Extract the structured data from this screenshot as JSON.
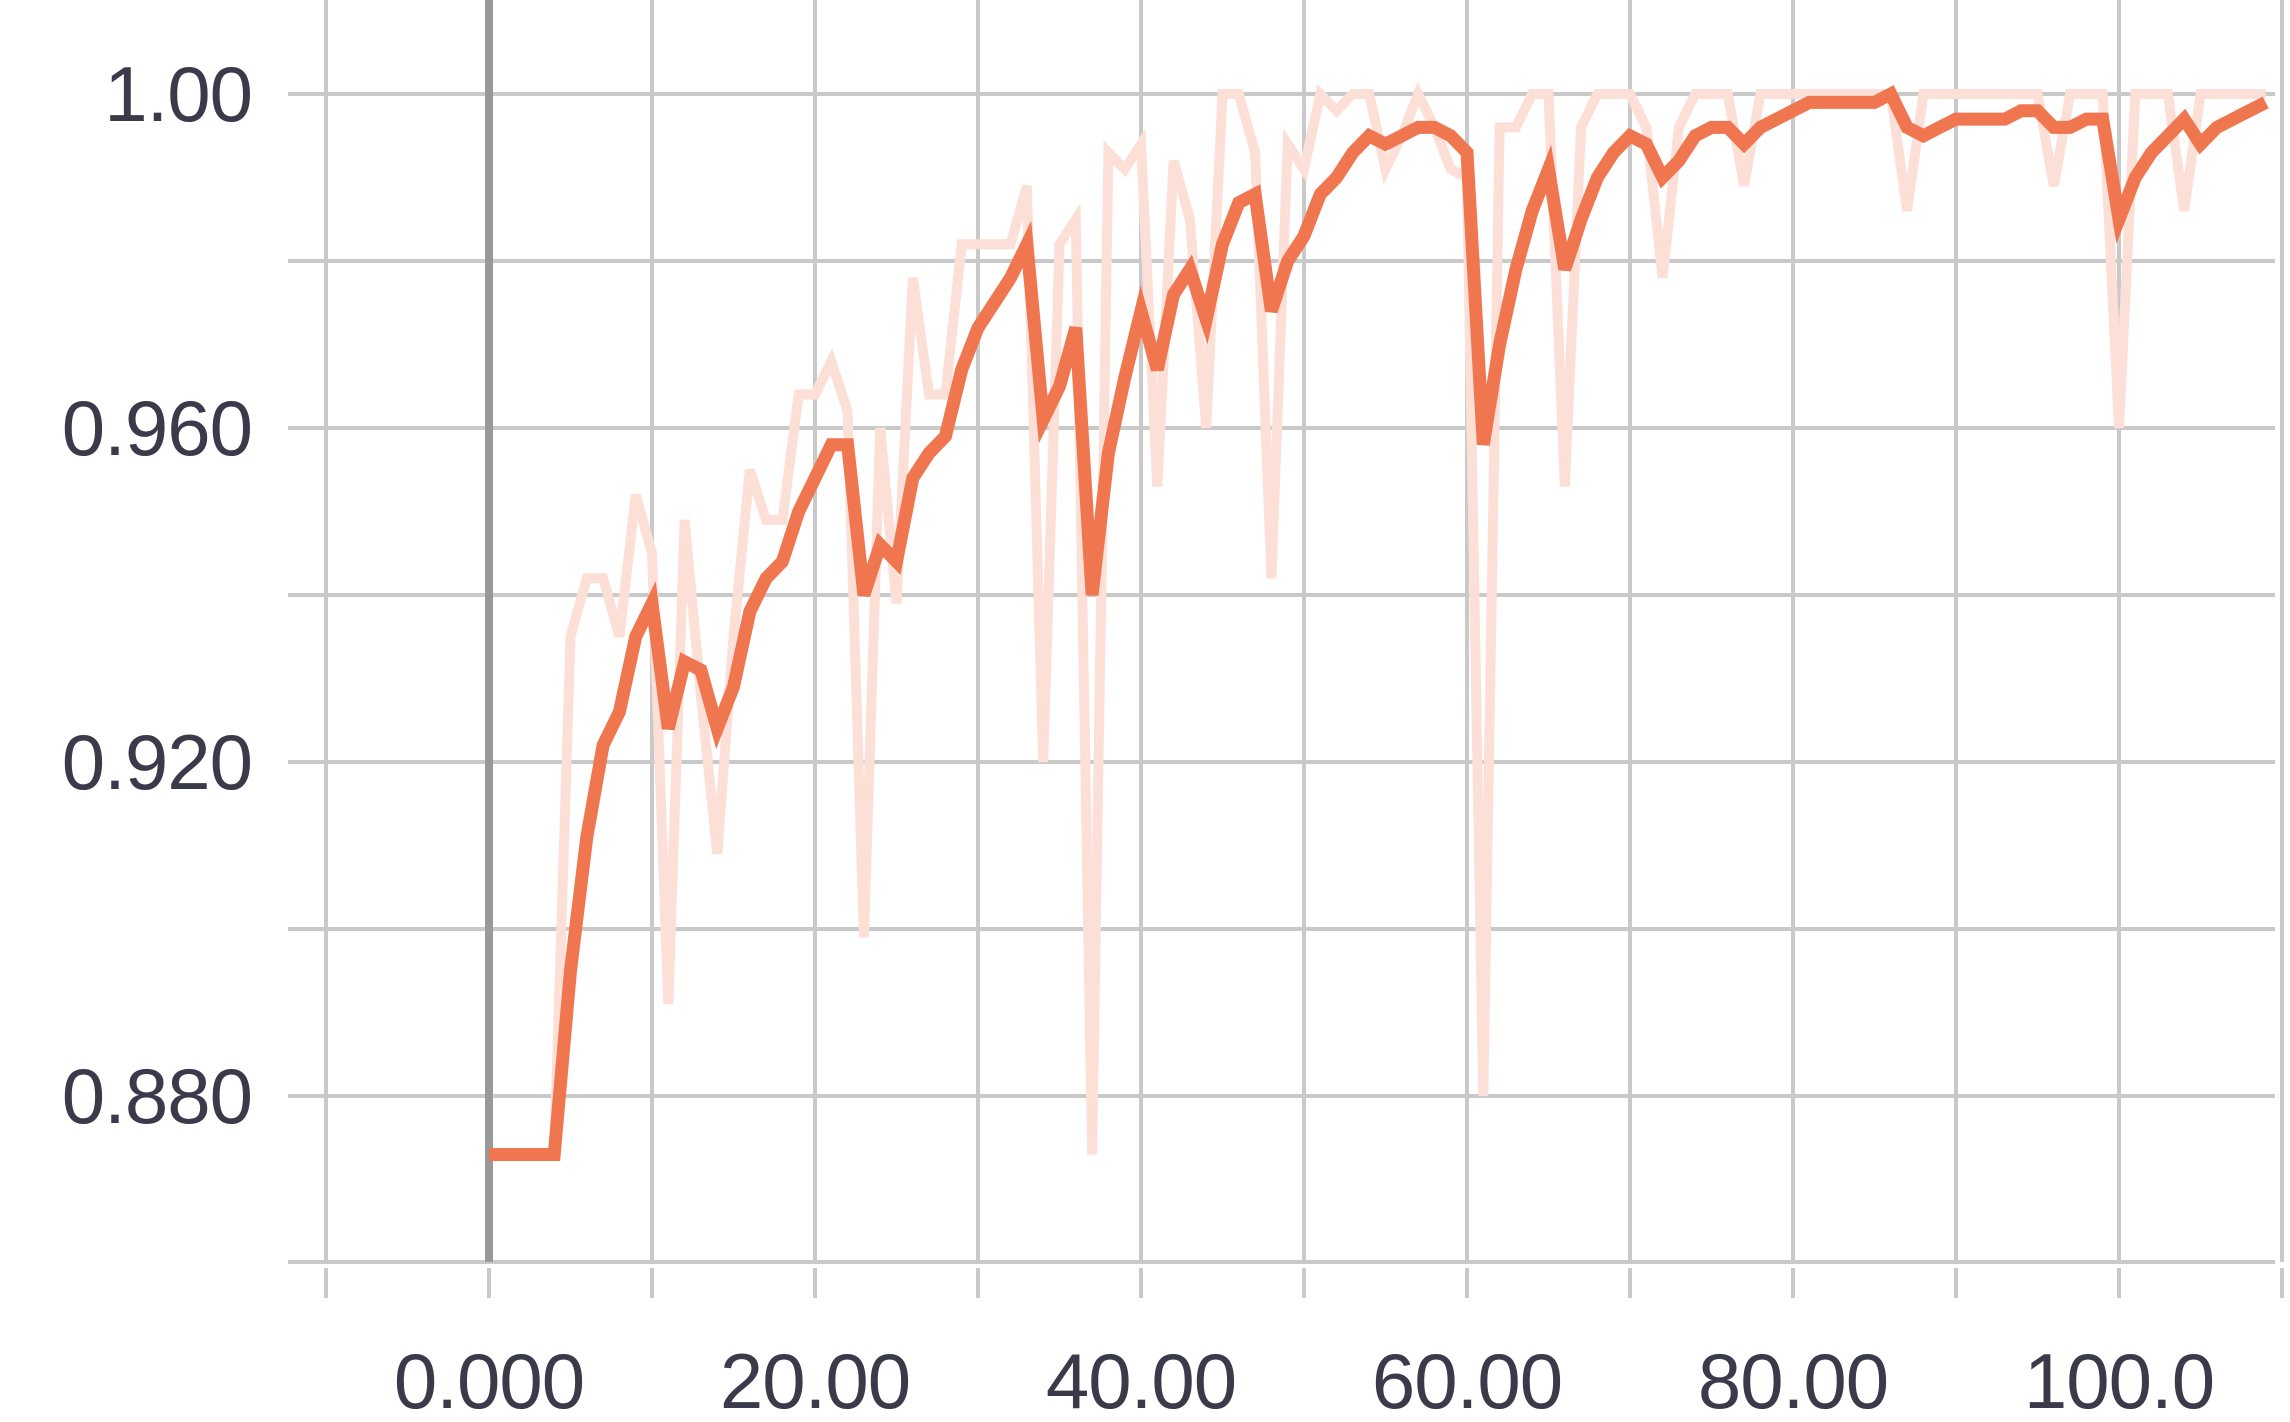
{
  "chart_data": {
    "type": "line",
    "title": "",
    "xlabel": "",
    "ylabel": "",
    "grid": true,
    "legend": "none",
    "xlim": [
      -10,
      110
    ],
    "ylim": [
      0.8596,
      1.0114
    ],
    "x_ticks": [
      0,
      20,
      40,
      60,
      80,
      100
    ],
    "x_tick_labels": [
      "0.000",
      "20.00",
      "40.00",
      "60.00",
      "80.00",
      "100.0"
    ],
    "x_minor_ticks": [
      -10,
      10,
      30,
      50,
      70,
      90,
      110
    ],
    "y_ticks": [
      0.88,
      0.92,
      0.96,
      1.0
    ],
    "y_tick_labels": [
      "0.880",
      "0.920",
      "0.960",
      "1.00"
    ],
    "y_minor_ticks": [
      0.9,
      0.94,
      0.98
    ],
    "series": [
      {
        "role": "raw",
        "color": "#fce0d8",
        "x": [
          0,
          3,
          4,
          5,
          6,
          7,
          8,
          9,
          10,
          11,
          12,
          13,
          14,
          15,
          16,
          17,
          18,
          19,
          20,
          21,
          22,
          23,
          24,
          25,
          26,
          27,
          28,
          29,
          30,
          31,
          32,
          33,
          34,
          35,
          36,
          37,
          38,
          39,
          40,
          41,
          42,
          43,
          44,
          45,
          46,
          47,
          48,
          49,
          50,
          51,
          52,
          53,
          54,
          55,
          56,
          57,
          58,
          59,
          60,
          61,
          62,
          63,
          64,
          65,
          66,
          67,
          68,
          69,
          70,
          71,
          72,
          73,
          74,
          75,
          76,
          77,
          78,
          79,
          80,
          81,
          82,
          83,
          84,
          85,
          86,
          87,
          88,
          89,
          90,
          91,
          92,
          93,
          94,
          95,
          96,
          97,
          98,
          99,
          100,
          101,
          102,
          103,
          104,
          105,
          106,
          107,
          108,
          109
        ],
        "y": [
          0.873,
          0.873,
          0.873,
          0.935,
          0.942,
          0.942,
          0.935,
          0.952,
          0.945,
          0.891,
          0.949,
          0.928,
          0.909,
          0.935,
          0.955,
          0.949,
          0.949,
          0.964,
          0.964,
          0.968,
          0.962,
          0.899,
          0.96,
          0.939,
          0.978,
          0.964,
          0.964,
          0.982,
          0.982,
          0.982,
          0.982,
          0.989,
          0.92,
          0.982,
          0.985,
          0.873,
          0.993,
          0.991,
          0.994,
          0.953,
          0.992,
          0.985,
          0.96,
          1.0,
          1.0,
          0.993,
          0.942,
          0.994,
          0.991,
          1.0,
          0.998,
          1.0,
          1.0,
          0.991,
          0.995,
          1.0,
          0.996,
          0.991,
          0.99,
          0.88,
          0.996,
          0.996,
          1.0,
          1.0,
          0.953,
          0.996,
          1.0,
          1.0,
          1.0,
          0.996,
          0.978,
          0.996,
          1.0,
          1.0,
          1.0,
          0.989,
          1.0,
          1.0,
          1.0,
          1.0,
          1.0,
          1.0,
          1.0,
          1.0,
          1.0,
          0.986,
          1.0,
          1.0,
          1.0,
          1.0,
          1.0,
          1.0,
          1.0,
          1.0,
          0.989,
          1.0,
          1.0,
          1.0,
          0.96,
          1.0,
          1.0,
          1.0,
          0.986,
          1.0,
          1.0,
          1.0,
          1.0,
          1.0
        ]
      },
      {
        "role": "smoothed",
        "color": "#f07650",
        "x": [
          0,
          3,
          4,
          5,
          6,
          7,
          8,
          9,
          10,
          11,
          12,
          13,
          14,
          15,
          16,
          17,
          18,
          19,
          20,
          21,
          22,
          23,
          24,
          25,
          26,
          27,
          28,
          29,
          30,
          31,
          32,
          33,
          34,
          35,
          36,
          37,
          38,
          39,
          40,
          41,
          42,
          43,
          44,
          45,
          46,
          47,
          48,
          49,
          50,
          51,
          52,
          53,
          54,
          55,
          56,
          57,
          58,
          59,
          60,
          61,
          62,
          63,
          64,
          65,
          66,
          67,
          68,
          69,
          70,
          71,
          72,
          73,
          74,
          75,
          76,
          77,
          78,
          79,
          80,
          81,
          82,
          83,
          84,
          85,
          86,
          87,
          88,
          89,
          90,
          91,
          92,
          93,
          94,
          95,
          96,
          97,
          98,
          99,
          100,
          101,
          102,
          103,
          104,
          105,
          106,
          107,
          108,
          109
        ],
        "y": [
          0.873,
          0.873,
          0.873,
          0.895,
          0.911,
          0.922,
          0.926,
          0.935,
          0.939,
          0.924,
          0.932,
          0.931,
          0.924,
          0.929,
          0.938,
          0.942,
          0.944,
          0.95,
          0.954,
          0.958,
          0.958,
          0.94,
          0.946,
          0.944,
          0.954,
          0.957,
          0.959,
          0.967,
          0.972,
          0.975,
          0.978,
          0.982,
          0.961,
          0.965,
          0.972,
          0.94,
          0.957,
          0.966,
          0.974,
          0.967,
          0.976,
          0.979,
          0.973,
          0.982,
          0.987,
          0.988,
          0.974,
          0.98,
          0.983,
          0.988,
          0.99,
          0.993,
          0.995,
          0.994,
          0.995,
          0.996,
          0.996,
          0.995,
          0.993,
          0.958,
          0.97,
          0.979,
          0.986,
          0.991,
          0.979,
          0.985,
          0.99,
          0.993,
          0.995,
          0.994,
          0.99,
          0.992,
          0.995,
          0.996,
          0.996,
          0.994,
          0.996,
          0.997,
          0.998,
          0.999,
          0.999,
          0.999,
          0.999,
          0.999,
          1.0,
          0.996,
          0.995,
          0.996,
          0.997,
          0.997,
          0.997,
          0.997,
          0.998,
          0.998,
          0.996,
          0.996,
          0.997,
          0.997,
          0.985,
          0.99,
          0.993,
          0.995,
          0.997,
          0.994,
          0.996,
          0.997,
          0.998,
          0.999
        ]
      }
    ]
  }
}
